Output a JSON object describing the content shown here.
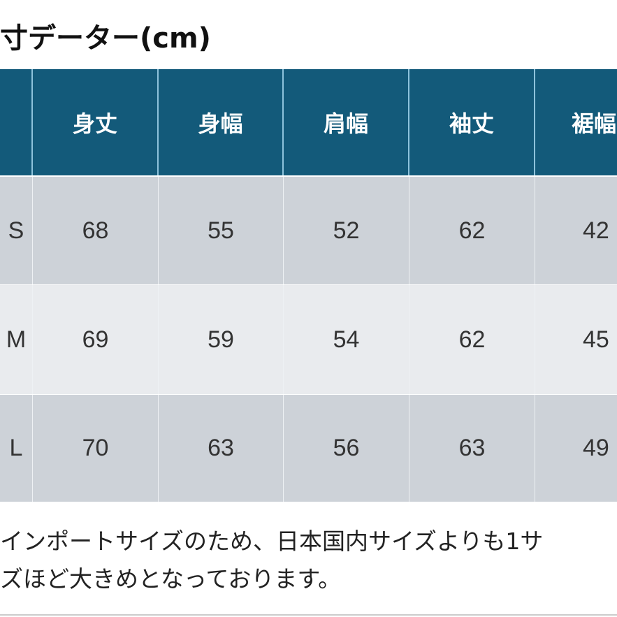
{
  "title": "寸データー(cm)",
  "colors": {
    "header_bg": "#135a7a",
    "row_dark": "#cdd2d8",
    "row_light": "#e9ebee"
  },
  "table": {
    "headers": [
      "",
      "身丈",
      "身幅",
      "肩幅",
      "袖丈",
      "裾幅"
    ],
    "rows": [
      [
        "S",
        "68",
        "55",
        "52",
        "62",
        "42"
      ],
      [
        "M",
        "69",
        "59",
        "54",
        "62",
        "45"
      ],
      [
        "L",
        "70",
        "63",
        "56",
        "63",
        "49"
      ]
    ]
  },
  "notes": [
    "インポートサイズのため、日本国内サイズよりも1サ",
    "ズほど大きめとなっております。"
  ]
}
